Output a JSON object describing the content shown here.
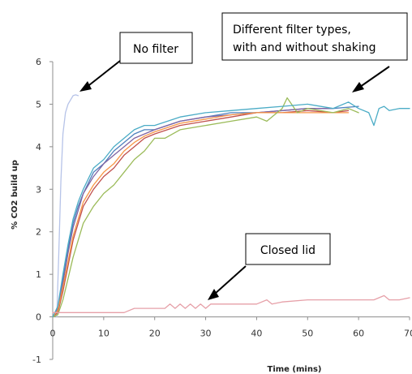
{
  "chart_data": {
    "type": "line",
    "xlabel": "Time (mins)",
    "ylabel": "% CO2 build up",
    "xlim": [
      0,
      70
    ],
    "ylim": [
      -1,
      6
    ],
    "xticks": [
      0,
      10,
      20,
      30,
      40,
      50,
      60,
      70
    ],
    "yticks": [
      -1,
      0,
      1,
      2,
      3,
      4,
      5,
      6
    ],
    "xtick_labels": [
      "0",
      "10",
      "20",
      "30",
      "40",
      "50",
      "60",
      "70"
    ],
    "ytick_labels": [
      "-1",
      "0",
      "1",
      "2",
      "3",
      "4",
      "5",
      "6"
    ],
    "grid": false,
    "legend": "none",
    "series": [
      {
        "color": "#b6c3e8",
        "x": [
          0.8,
          1.2,
          1.6,
          2.0,
          2.5,
          3.0,
          3.5,
          4.0,
          4.5,
          5.0
        ],
        "y": [
          0,
          1.5,
          3.2,
          4.3,
          4.8,
          5.0,
          5.1,
          5.2,
          5.22,
          5.2
        ]
      },
      {
        "color": "#4f81bd",
        "x": [
          0,
          1,
          2,
          3,
          4,
          5,
          6,
          8,
          10,
          12,
          14,
          16,
          18,
          20,
          25,
          30,
          35,
          40,
          45,
          50,
          55,
          60
        ],
        "y": [
          0,
          0.2,
          0.9,
          1.6,
          2.2,
          2.6,
          2.9,
          3.4,
          3.6,
          3.9,
          4.1,
          4.3,
          4.4,
          4.4,
          4.6,
          4.7,
          4.8,
          4.8,
          4.85,
          4.9,
          4.9,
          4.95
        ]
      },
      {
        "color": "#8064a2",
        "x": [
          0,
          1,
          2,
          3,
          4,
          5,
          6,
          8,
          10,
          12,
          14,
          16,
          18,
          20,
          25,
          30,
          35,
          40,
          45,
          50,
          55
        ],
        "y": [
          0,
          0.2,
          0.8,
          1.5,
          2.1,
          2.5,
          2.9,
          3.3,
          3.6,
          3.8,
          4.0,
          4.2,
          4.3,
          4.4,
          4.6,
          4.7,
          4.75,
          4.8,
          4.85,
          4.9,
          4.9
        ]
      },
      {
        "color": "#c0504d",
        "x": [
          0,
          1,
          2,
          3,
          4,
          5,
          6,
          8,
          10,
          12,
          14,
          16,
          18,
          20,
          25,
          30,
          35,
          40,
          45,
          50,
          55,
          58
        ],
        "y": [
          0,
          0.1,
          0.6,
          1.2,
          1.8,
          2.2,
          2.6,
          3.0,
          3.3,
          3.5,
          3.8,
          4.0,
          4.2,
          4.3,
          4.5,
          4.6,
          4.7,
          4.8,
          4.8,
          4.85,
          4.8,
          4.85
        ]
      },
      {
        "color": "#f79646",
        "x": [
          0,
          1,
          2,
          3,
          4,
          5,
          6,
          8,
          10,
          12,
          14,
          16,
          18,
          20,
          25,
          30,
          35,
          40,
          45,
          50,
          55,
          58
        ],
        "y": [
          0,
          0.15,
          0.7,
          1.3,
          1.9,
          2.3,
          2.7,
          3.1,
          3.4,
          3.6,
          3.9,
          4.1,
          4.25,
          4.35,
          4.55,
          4.65,
          4.75,
          4.8,
          4.8,
          4.8,
          4.8,
          4.8
        ]
      },
      {
        "color": "#9bbb59",
        "x": [
          0,
          1,
          2,
          3,
          4,
          5,
          6,
          8,
          10,
          12,
          14,
          16,
          18,
          20,
          22,
          25,
          30,
          35,
          40,
          42,
          45,
          46,
          48,
          50,
          55,
          58,
          60
        ],
        "y": [
          0,
          0.05,
          0.4,
          0.9,
          1.4,
          1.8,
          2.2,
          2.6,
          2.9,
          3.1,
          3.4,
          3.7,
          3.9,
          4.2,
          4.2,
          4.4,
          4.5,
          4.6,
          4.7,
          4.6,
          4.9,
          5.15,
          4.8,
          4.9,
          4.8,
          4.9,
          4.8
        ]
      },
      {
        "color": "#4bacc6",
        "x": [
          0,
          1,
          2,
          3,
          4,
          5,
          6,
          8,
          10,
          12,
          14,
          16,
          18,
          20,
          25,
          30,
          35,
          40,
          45,
          50,
          55,
          58,
          60,
          62,
          63,
          64,
          65,
          66,
          68,
          70
        ],
        "y": [
          0,
          0.25,
          1.0,
          1.7,
          2.3,
          2.7,
          3.0,
          3.5,
          3.7,
          4.0,
          4.2,
          4.4,
          4.5,
          4.5,
          4.7,
          4.8,
          4.85,
          4.9,
          4.95,
          5.0,
          4.9,
          5.05,
          4.9,
          4.8,
          4.5,
          4.9,
          4.95,
          4.85,
          4.9,
          4.9
        ]
      },
      {
        "color": "#e6a0a8",
        "x": [
          0,
          3,
          6,
          9,
          12,
          14,
          16,
          20,
          22,
          23,
          24,
          25,
          26,
          27,
          28,
          29,
          30,
          31,
          32,
          35,
          40,
          42,
          43,
          45,
          50,
          55,
          60,
          63,
          65,
          66,
          68,
          70
        ],
        "y": [
          0.1,
          0.1,
          0.1,
          0.1,
          0.1,
          0.1,
          0.2,
          0.2,
          0.2,
          0.3,
          0.2,
          0.3,
          0.2,
          0.3,
          0.2,
          0.3,
          0.2,
          0.3,
          0.3,
          0.3,
          0.3,
          0.4,
          0.3,
          0.35,
          0.4,
          0.4,
          0.4,
          0.4,
          0.5,
          0.4,
          0.4,
          0.45
        ]
      }
    ],
    "annotations": [
      {
        "text": "No filter"
      },
      {
        "text": "Different filter types, with and without shaking",
        "lines": [
          "Different filter types,",
          "with and without shaking"
        ]
      },
      {
        "text": "Closed lid"
      }
    ]
  }
}
